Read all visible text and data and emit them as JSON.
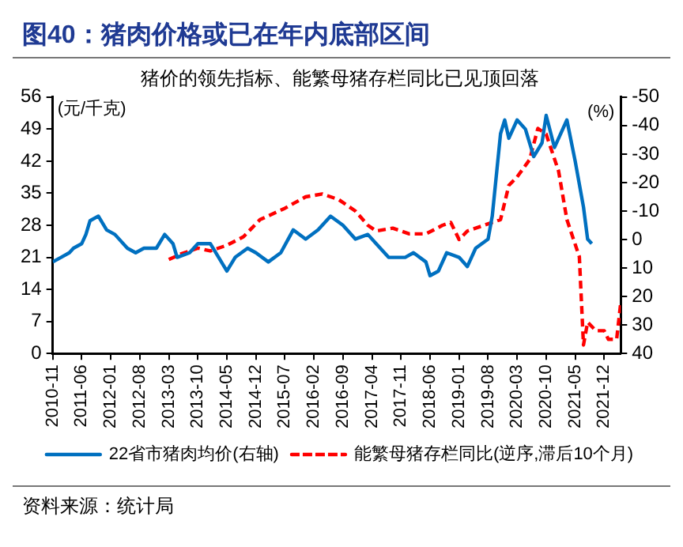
{
  "chart_data": {
    "type": "line",
    "title": "图40：猪肉价格或已在年内底部区间",
    "subtitle": "猪价的领先指标、能繁母猪存栏同比已见顶回落",
    "ylabel": "(元/千克)",
    "y2label": "(%)",
    "annotations": [
      "资料来源：统计局"
    ],
    "xlim": [
      "2010-11",
      "2022-04"
    ],
    "xticks": [
      "2010-11",
      "2011-06",
      "2012-01",
      "2012-08",
      "2013-03",
      "2013-10",
      "2014-05",
      "2014-12",
      "2015-07",
      "2016-02",
      "2016-09",
      "2017-04",
      "2017-11",
      "2018-06",
      "2019-01",
      "2019-08",
      "2020-03",
      "2020-10",
      "2021-05",
      "2021-12"
    ],
    "ylim": [
      0,
      56
    ],
    "yticks": [
      0,
      7,
      14,
      21,
      28,
      35,
      42,
      49,
      56
    ],
    "y2lim": [
      40,
      -50
    ],
    "y2ticks": [
      -50,
      -40,
      -30,
      -20,
      -10,
      0,
      10,
      20,
      30,
      40
    ],
    "grid": false,
    "legend": "bottom",
    "marker": "none",
    "series": [
      {
        "name": "22省市猪肉均价(右轴)",
        "color": "#0070c0",
        "line_style": "solid",
        "x": [
          "2010-11",
          "2011-01",
          "2011-03",
          "2011-04",
          "2011-06",
          "2011-07",
          "2011-08",
          "2011-10",
          "2011-12",
          "2012-02",
          "2012-05",
          "2012-07",
          "2012-09",
          "2012-12",
          "2013-02",
          "2013-04",
          "2013-05",
          "2013-08",
          "2013-10",
          "2014-01",
          "2014-05",
          "2014-07",
          "2014-10",
          "2014-12",
          "2015-03",
          "2015-06",
          "2015-09",
          "2015-12",
          "2016-03",
          "2016-06",
          "2016-09",
          "2016-12",
          "2017-03",
          "2017-05",
          "2017-08",
          "2017-12",
          "2018-02",
          "2018-05",
          "2018-06",
          "2018-08",
          "2018-10",
          "2019-01",
          "2019-03",
          "2019-05",
          "2019-08",
          "2019-09",
          "2019-11",
          "2019-12",
          "2020-01",
          "2020-03",
          "2020-05",
          "2020-07",
          "2020-09",
          "2020-10",
          "2020-12",
          "2021-03",
          "2021-05",
          "2021-07",
          "2021-08",
          "2021-09"
        ],
        "values": [
          20,
          21,
          22,
          23,
          24,
          26,
          29,
          30,
          27,
          26,
          23,
          22,
          23,
          23,
          26,
          24,
          21,
          22,
          24,
          24,
          18,
          21,
          23,
          22,
          20,
          22,
          27,
          25,
          27,
          30,
          28,
          25,
          26,
          24,
          21,
          21,
          22,
          20,
          17,
          18,
          22,
          21,
          19,
          23,
          25,
          30,
          48,
          51,
          47,
          51,
          49,
          43,
          46,
          52,
          45,
          51,
          42,
          32,
          25,
          24
        ]
      },
      {
        "name": "能繁母猪存栏同比(逆序,滞后10个月)",
        "color": "#ff0000",
        "axis": "y2",
        "line_style": "dashed",
        "x": [
          "2013-03",
          "2013-06",
          "2013-10",
          "2014-01",
          "2014-05",
          "2014-09",
          "2015-01",
          "2015-07",
          "2015-12",
          "2016-04",
          "2016-08",
          "2016-12",
          "2017-03",
          "2017-05",
          "2017-09",
          "2018-01",
          "2018-05",
          "2018-09",
          "2018-11",
          "2019-01",
          "2019-03",
          "2019-07",
          "2019-11",
          "2020-01",
          "2020-03",
          "2020-06",
          "2020-08",
          "2020-10",
          "2021-01",
          "2021-03",
          "2021-06",
          "2021-07",
          "2021-08",
          "2021-10",
          "2021-12",
          "2022-01",
          "2022-03",
          "2022-04"
        ],
        "values": [
          7,
          5,
          3,
          4,
          2,
          -1,
          -7,
          -11,
          -15,
          -16,
          -14,
          -10,
          -5,
          -3,
          -4,
          -2,
          -2,
          -5,
          -6,
          0,
          -3,
          -5,
          -7,
          -19,
          -22,
          -28,
          -39,
          -37,
          -24,
          -7,
          6,
          37,
          29,
          32,
          32,
          35,
          35,
          22
        ]
      }
    ]
  }
}
